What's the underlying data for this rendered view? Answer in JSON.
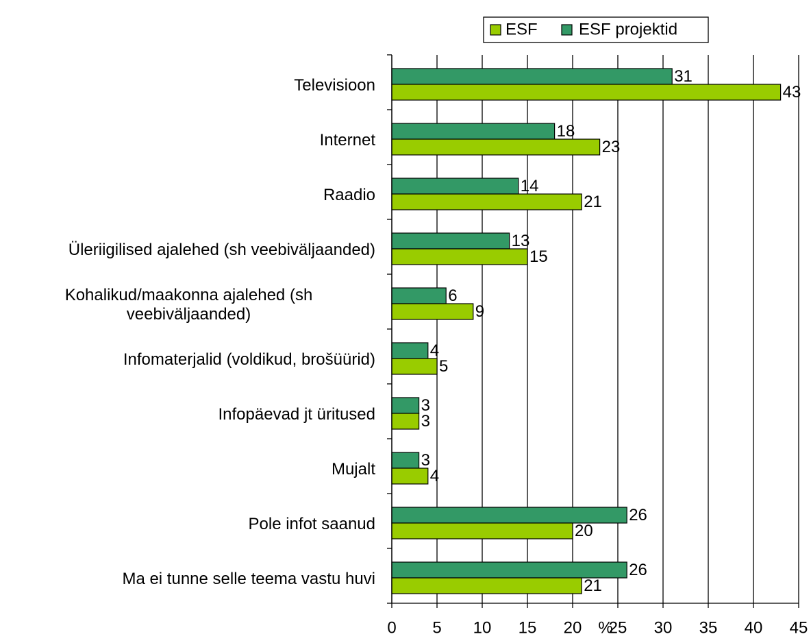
{
  "chart_data": {
    "type": "hbar",
    "categories": [
      "Televisioon",
      "Internet",
      "Raadio",
      "Üleriigilised ajalehed (sh veebiväljaanded)",
      "Kohalikud/maakonna ajalehed (sh veebiväljaanded)",
      "Infomaterjalid (voldikud, brošüürid)",
      "Infopäevad jt üritused",
      "Mujalt",
      "Pole infot saanud",
      "Ma ei tunne selle teema vastu huvi"
    ],
    "series": [
      {
        "name": "ESF",
        "color": "#99cc00",
        "values": [
          43,
          23,
          21,
          15,
          9,
          5,
          3,
          4,
          20,
          21
        ]
      },
      {
        "name": "ESF projektid",
        "color": "#339966",
        "values": [
          31,
          18,
          14,
          13,
          6,
          4,
          3,
          3,
          26,
          26
        ]
      }
    ],
    "xlabel": "%",
    "xlim": [
      0,
      45
    ],
    "xticks": [
      0,
      5,
      10,
      15,
      20,
      25,
      30,
      35,
      40,
      45
    ],
    "grid": true,
    "legend": "top"
  }
}
